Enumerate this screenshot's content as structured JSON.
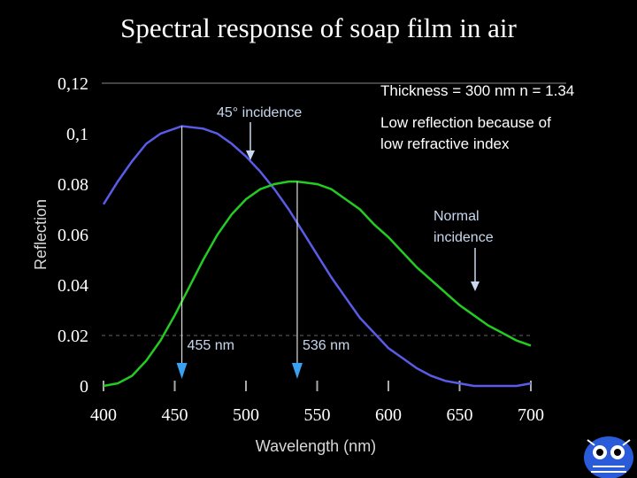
{
  "slide_title": "Spectral response of soap film in air",
  "chart_data": {
    "type": "line",
    "title": "Spectral response of soap film in air",
    "xlabel": "Wavelength (nm)",
    "ylabel": "Reflection",
    "xlim": [
      400,
      700
    ],
    "ylim": [
      0,
      0.12
    ],
    "x_ticks": [
      "400",
      "450",
      "500",
      "550",
      "600",
      "650",
      "700"
    ],
    "y_ticks": [
      "0",
      "0.02",
      "0.04",
      "0.06",
      "0.08",
      "0,1",
      "0,12"
    ],
    "series": [
      {
        "name": "45° incidence",
        "color": "#5a5ce8",
        "x": [
          400,
          410,
          420,
          430,
          440,
          455,
          470,
          480,
          490,
          500,
          510,
          520,
          530,
          540,
          550,
          560,
          570,
          580,
          590,
          600,
          610,
          620,
          630,
          640,
          650,
          660,
          670,
          680,
          690,
          700
        ],
        "y": [
          0.072,
          0.081,
          0.089,
          0.096,
          0.1,
          0.103,
          0.102,
          0.1,
          0.096,
          0.091,
          0.085,
          0.078,
          0.07,
          0.061,
          0.052,
          0.043,
          0.035,
          0.027,
          0.021,
          0.015,
          0.011,
          0.007,
          0.004,
          0.002,
          0.001,
          0.0,
          0.0,
          0.0,
          0.0,
          0.001
        ]
      },
      {
        "name": "Normal incidence",
        "color": "#22cc22",
        "x": [
          400,
          410,
          420,
          430,
          440,
          450,
          460,
          470,
          480,
          490,
          500,
          510,
          520,
          530,
          536,
          550,
          560,
          570,
          580,
          590,
          600,
          610,
          620,
          630,
          640,
          650,
          660,
          670,
          680,
          690,
          700
        ],
        "y": [
          0.0,
          0.001,
          0.004,
          0.01,
          0.018,
          0.028,
          0.039,
          0.05,
          0.06,
          0.068,
          0.074,
          0.078,
          0.08,
          0.081,
          0.081,
          0.08,
          0.078,
          0.074,
          0.07,
          0.064,
          0.059,
          0.053,
          0.047,
          0.042,
          0.037,
          0.032,
          0.028,
          0.024,
          0.021,
          0.018,
          0.016
        ]
      }
    ],
    "peaks": [
      {
        "label": "455 nm",
        "x": 455,
        "series": "45° incidence"
      },
      {
        "label": "536 nm",
        "x": 536,
        "series": "Normal incidence"
      }
    ],
    "annotations": {
      "thickness": "Thickness = 300 nm n = 1.34",
      "low_reflection_1": "Low reflection because of",
      "low_reflection_2": "low refractive index",
      "incidence_45": "45° incidence",
      "normal_1": "Normal",
      "normal_2": "incidence"
    }
  }
}
